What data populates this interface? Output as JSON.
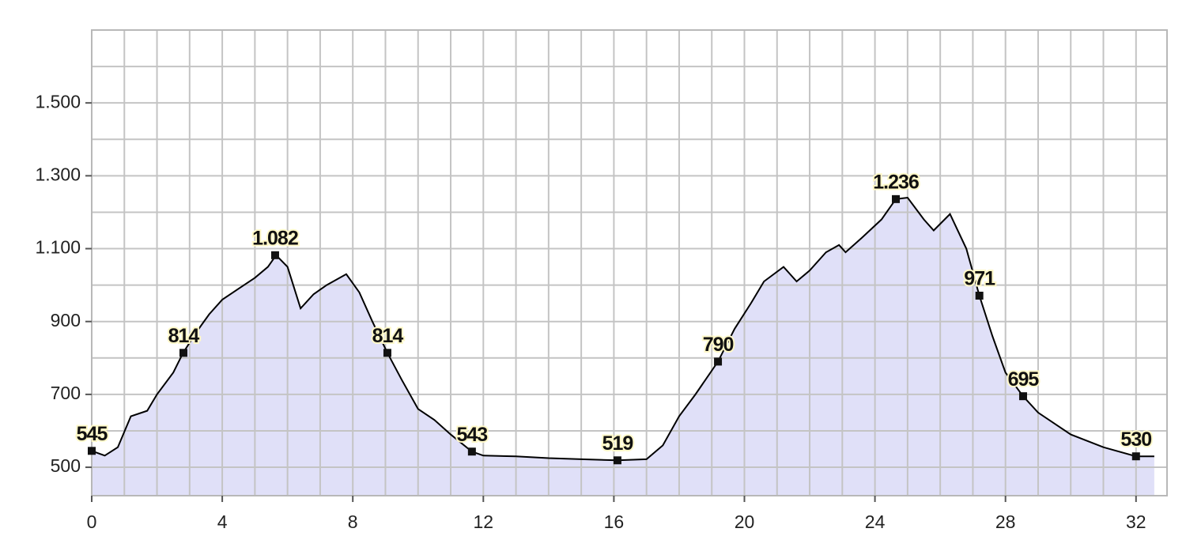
{
  "chart_data": {
    "type": "area",
    "x": [
      0,
      0.4,
      0.8,
      1.2,
      1.7,
      2.0,
      2.5,
      2.8,
      3.2,
      3.6,
      4.0,
      4.5,
      5.0,
      5.4,
      5.65,
      6.0,
      6.4,
      6.8,
      7.2,
      7.8,
      8.2,
      8.6,
      9.06,
      9.5,
      10.0,
      10.5,
      11.0,
      11.65,
      12.0,
      13.0,
      14.0,
      15.0,
      16.11,
      17.0,
      17.5,
      18.0,
      18.5,
      19.19,
      19.7,
      20.2,
      20.6,
      21.2,
      21.6,
      22.0,
      22.5,
      22.9,
      23.1,
      23.6,
      24.2,
      24.64,
      25.0,
      25.5,
      25.8,
      26.3,
      26.8,
      27.2,
      27.6,
      28.0,
      28.54,
      29.0,
      30.0,
      31.0,
      32.0,
      32.56
    ],
    "values": [
      545,
      532,
      555,
      640,
      655,
      700,
      760,
      814,
      870,
      920,
      960,
      990,
      1020,
      1050,
      1082,
      1050,
      936,
      975,
      1000,
      1030,
      980,
      900,
      814,
      740,
      660,
      630,
      590,
      543,
      532,
      530,
      525,
      522,
      519,
      522,
      560,
      640,
      700,
      790,
      880,
      950,
      1010,
      1050,
      1010,
      1040,
      1090,
      1110,
      1090,
      1130,
      1180,
      1236,
      1240,
      1180,
      1150,
      1195,
      1100,
      971,
      860,
      760,
      695,
      650,
      590,
      555,
      530,
      530
    ],
    "color": "#000000",
    "fill": "#e0e0f8",
    "xlim": [
      0,
      32.95
    ],
    "ylim": [
      422,
      1700
    ],
    "xticks": [
      0,
      4,
      8,
      12,
      16,
      20,
      24,
      28,
      32
    ],
    "yticks": [
      500,
      700,
      900,
      {
        "value": 1100,
        "label": "1.100"
      },
      {
        "value": 1300,
        "label": "1.300"
      },
      {
        "value": 1500,
        "label": "1.500"
      }
    ],
    "grid": true,
    "xgrid": [
      0,
      1,
      2,
      3,
      4,
      5,
      6,
      7,
      8,
      9,
      10,
      11,
      12,
      13,
      14,
      15,
      16,
      17,
      18,
      19,
      20,
      21,
      22,
      23,
      24,
      25,
      26,
      27,
      28,
      29,
      30,
      31,
      32
    ],
    "ygrid": [
      500,
      600,
      700,
      800,
      900,
      1000,
      1100,
      1200,
      1300,
      1400,
      1500,
      1600,
      1700
    ],
    "points": {
      "x": [
        0,
        2.81,
        5.62,
        9.06,
        11.65,
        16.11,
        19.19,
        24.64,
        27.2,
        28.54,
        32.0
      ],
      "values": [
        545,
        814,
        1082,
        814,
        543,
        519,
        790,
        1236,
        971,
        695,
        530
      ],
      "value_labels": [
        "545",
        "814",
        "1.082",
        "814",
        "543",
        "519",
        "790",
        "1.236",
        "971",
        "695",
        "530"
      ]
    }
  }
}
